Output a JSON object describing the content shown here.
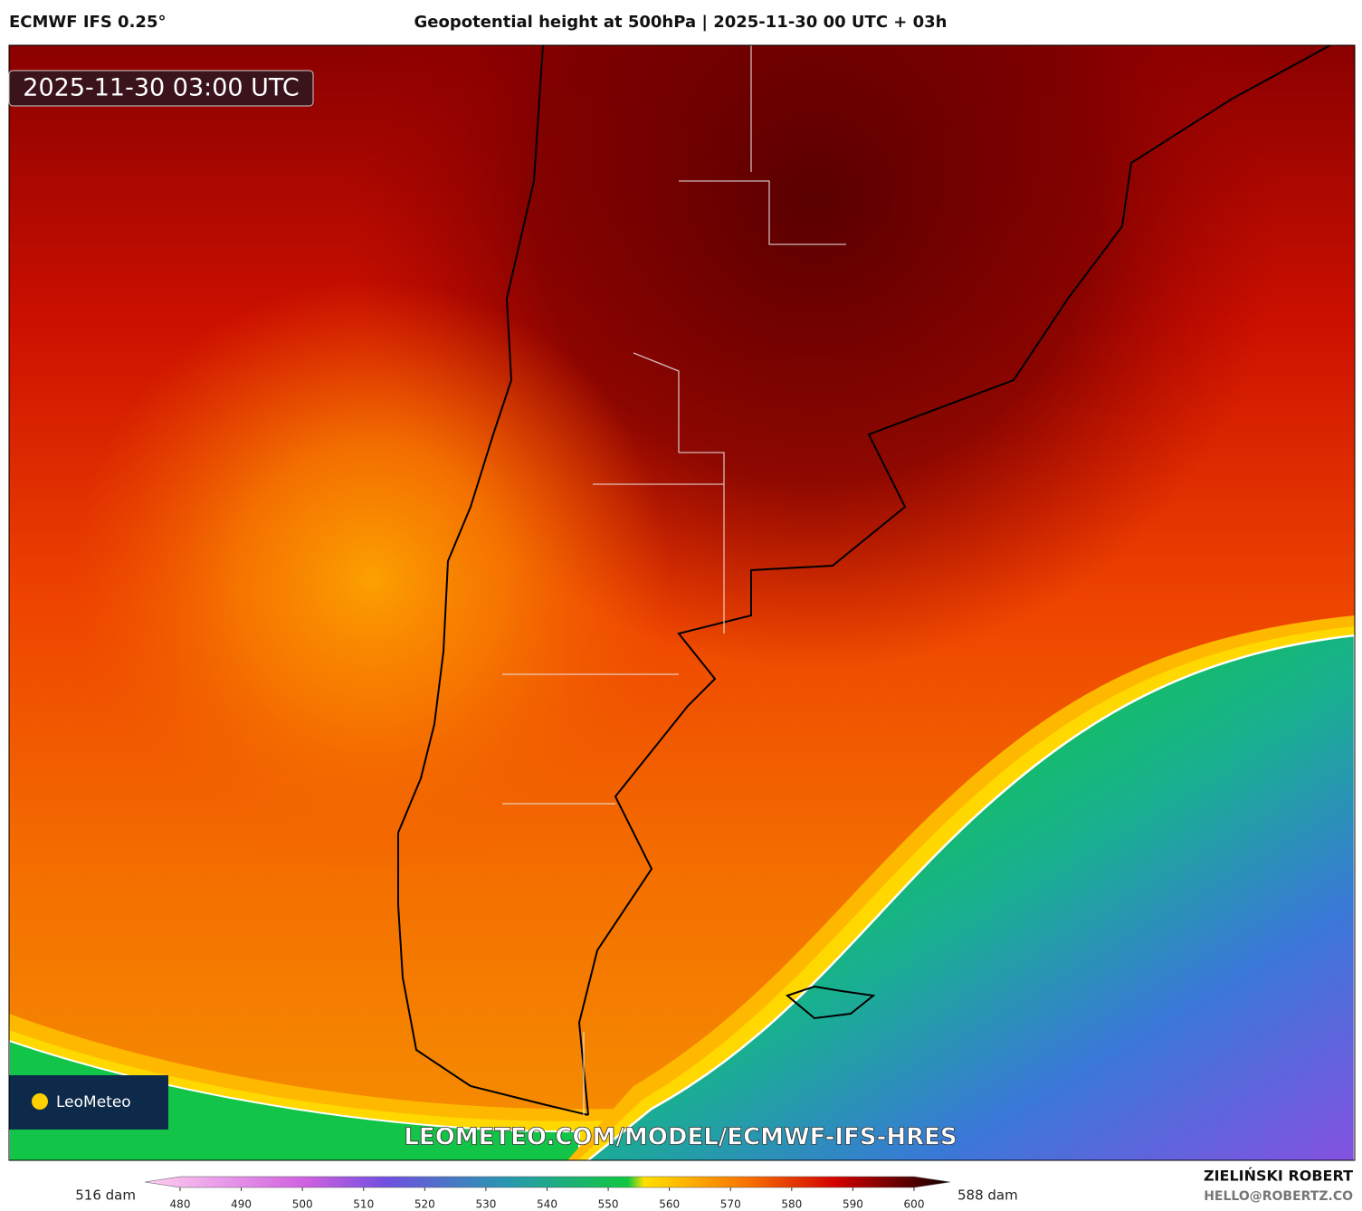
{
  "header": {
    "model": "ECMWF IFS 0.25°",
    "title": "Geopotential height at 500hPa | 2025-11-30 00 UTC + 03h"
  },
  "map": {
    "timestamp": "2025-11-30 03:00 UTC",
    "watermark": "LEOMETEO.COM/MODEL/ECMWF-IFS-HRES",
    "logo": "LeoMeteo"
  },
  "colorbar": {
    "min_label": "516 dam",
    "max_label": "588 dam",
    "ticks": [
      480,
      490,
      500,
      510,
      520,
      530,
      540,
      550,
      560,
      570,
      580,
      590,
      600
    ]
  },
  "footer": {
    "author": "ZIELIŃSKI ROBERT",
    "email": "HELLO@ROBERTZ.CO"
  }
}
